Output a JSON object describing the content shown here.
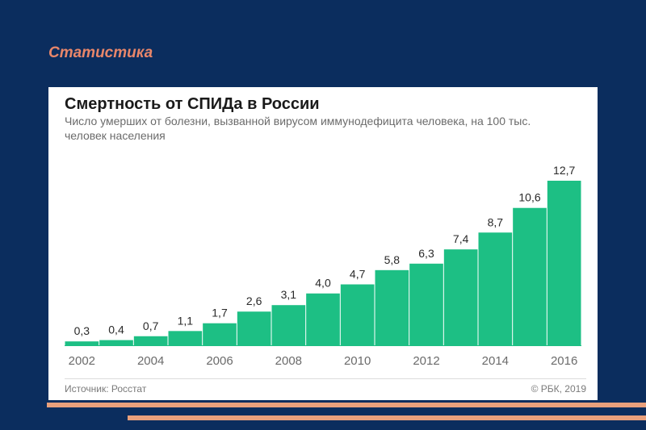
{
  "slide": {
    "title": "Статистика",
    "accent_color": "#e9a07c",
    "background_color": "#0b2d5e"
  },
  "chart_data": {
    "type": "bar",
    "title": "Смертность от СПИДа в России",
    "subtitle": "Число умерших от болезни, вызванной вирусом иммунодефицита человека, на 100 тыс. человек населения",
    "categories": [
      "2002",
      "2003",
      "2004",
      "2005",
      "2006",
      "2007",
      "2008",
      "2009",
      "2010",
      "2011",
      "2012",
      "2013",
      "2014",
      "2015",
      "2016"
    ],
    "values": [
      0.3,
      0.4,
      0.7,
      1.1,
      1.7,
      2.6,
      3.1,
      4.0,
      4.7,
      5.8,
      6.3,
      7.4,
      8.7,
      10.6,
      12.7
    ],
    "value_labels": [
      "0,3",
      "0,4",
      "0,7",
      "1,1",
      "1,7",
      "2,6",
      "3,1",
      "4,0",
      "4,7",
      "5,8",
      "6,3",
      "7,4",
      "8,7",
      "10,6",
      "12,7"
    ],
    "x_tick_labels": [
      "2002",
      "",
      "2004",
      "",
      "2006",
      "",
      "2008",
      "",
      "2010",
      "",
      "2012",
      "",
      "2014",
      "",
      "2016"
    ],
    "bar_color": "#1dbf84",
    "grid": false,
    "ylim": [
      0,
      12.7
    ]
  },
  "footer": {
    "source": "Источник: Росстат",
    "copyright": "© РБК, 2019"
  }
}
